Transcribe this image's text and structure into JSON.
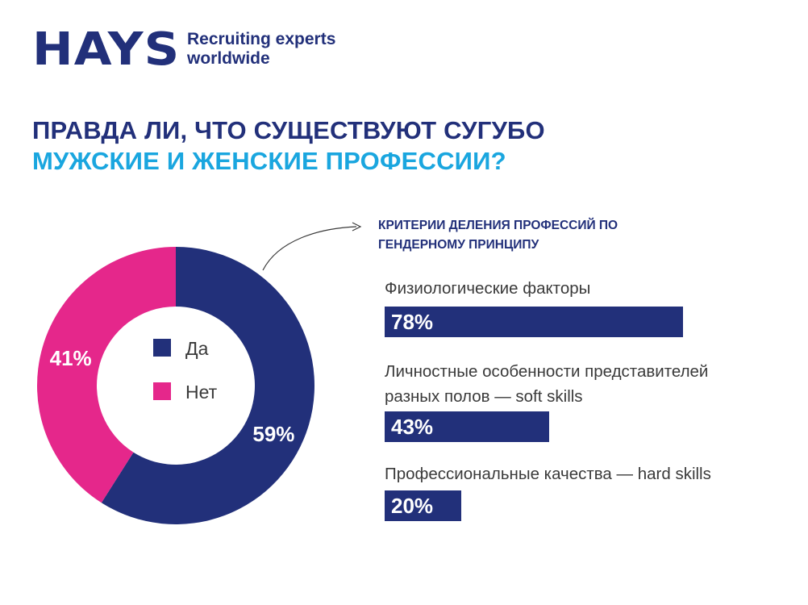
{
  "brand": {
    "logo_text": "HAYS",
    "tagline_line1": "Recruiting experts",
    "tagline_line2": "worldwide"
  },
  "title": {
    "line1": "ПРАВДА ЛИ, ЧТО СУЩЕСТВУЮТ СУГУБО",
    "line2": "МУЖСКИЕ И ЖЕНСКИЕ ПРОФЕССИИ?"
  },
  "criteria_title": {
    "line1": "КРИТЕРИИ ДЕЛЕНИЯ ПРОФЕССИЙ ПО",
    "line2": "ГЕНДЕРНОМУ ПРИНЦИПУ"
  },
  "colors": {
    "navy": "#22307a",
    "pink": "#e5278b",
    "cyan": "#1aa6df",
    "text": "#3a3a3a"
  },
  "chart_data": [
    {
      "type": "pie",
      "variant": "donut",
      "categories": [
        "Да",
        "Нет"
      ],
      "values": [
        59,
        41
      ],
      "labels": [
        "59%",
        "41%"
      ],
      "colors": [
        "#22307a",
        "#e5278b"
      ],
      "legend": [
        "Да",
        "Нет"
      ],
      "legend_placement": "center"
    },
    {
      "type": "bar",
      "orientation": "horizontal",
      "title": "КРИТЕРИИ ДЕЛЕНИЯ ПРОФЕССИЙ ПО ГЕНДЕРНОМУ ПРИНЦИПУ",
      "categories": [
        [
          "Физиологические факторы"
        ],
        [
          "Личностные особенности представителей",
          "разных полов — soft skills"
        ],
        [
          "Профессиональные качества — hard skills"
        ]
      ],
      "values": [
        78,
        43,
        20
      ],
      "labels": [
        "78%",
        "43%",
        "20%"
      ],
      "xlim": [
        0,
        100
      ],
      "color": "#22307a"
    }
  ]
}
